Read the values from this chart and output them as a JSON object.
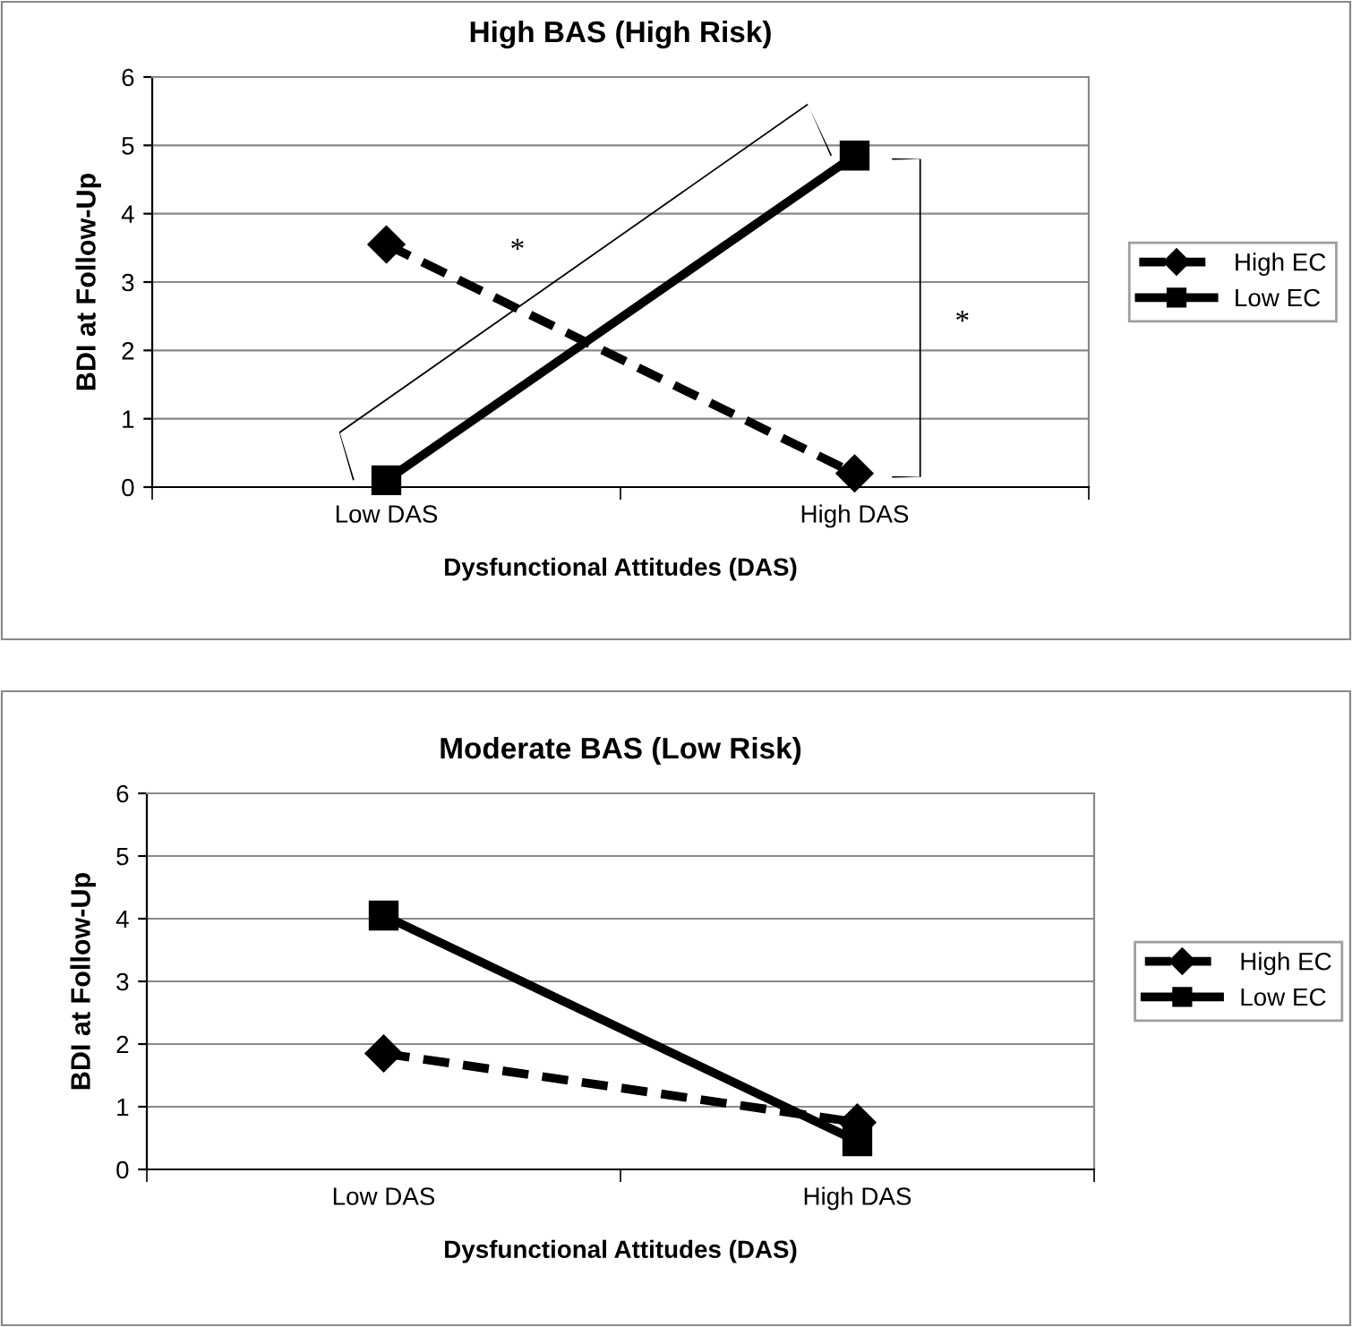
{
  "chart_data": [
    {
      "type": "line",
      "title": "High BAS (High Risk)",
      "xlabel": "Dysfunctional Attitudes (DAS)",
      "ylabel": "BDI at Follow-Up",
      "categories": [
        "Low DAS",
        "High DAS"
      ],
      "series": [
        {
          "name": "High EC",
          "color": "#000000",
          "values": [
            3.55,
            0.2
          ],
          "marker": "diamond",
          "line_style": "dashed"
        },
        {
          "name": "Low EC",
          "color": "#000000",
          "values": [
            0.1,
            4.85
          ],
          "marker": "square",
          "line_style": "solid"
        }
      ],
      "ylim": [
        0,
        6
      ],
      "yticks": [
        0,
        1,
        2,
        3,
        4,
        5,
        6
      ],
      "grid": "y",
      "legend": "right",
      "annotations": [
        "*",
        "*"
      ]
    },
    {
      "type": "line",
      "title": "Moderate BAS (Low Risk)",
      "xlabel": "Dysfunctional Attitudes (DAS)",
      "ylabel": "BDI at Follow-Up",
      "categories": [
        "Low DAS",
        "High DAS"
      ],
      "series": [
        {
          "name": "High EC",
          "color": "#000000",
          "values": [
            1.85,
            0.75
          ],
          "marker": "diamond",
          "line_style": "dashed"
        },
        {
          "name": "Low EC",
          "color": "#000000",
          "values": [
            4.05,
            0.45
          ],
          "marker": "square",
          "line_style": "solid"
        }
      ],
      "ylim": [
        0,
        6
      ],
      "yticks": [
        0,
        1,
        2,
        3,
        4,
        5,
        6
      ],
      "grid": "y",
      "legend": "right"
    }
  ]
}
